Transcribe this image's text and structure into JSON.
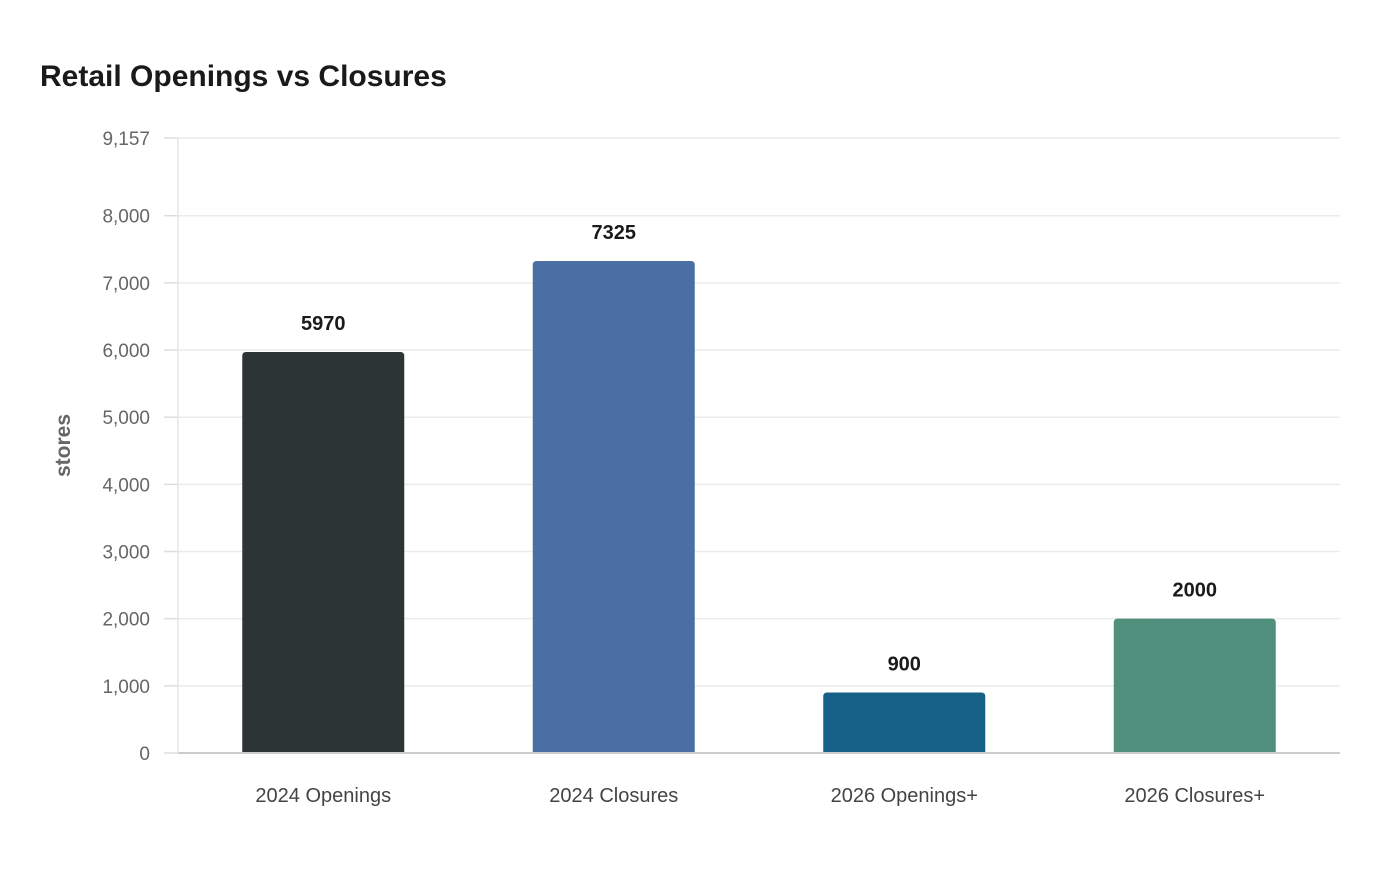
{
  "chart_data": {
    "type": "bar",
    "title": "Retail Openings vs Closures",
    "xlabel": "",
    "ylabel": "stores",
    "ylim": [
      0,
      9157
    ],
    "yticks": [
      0,
      1000,
      2000,
      3000,
      4000,
      5000,
      6000,
      7000,
      8000,
      9157
    ],
    "ytick_labels": [
      "0",
      "1,000",
      "2,000",
      "3,000",
      "4,000",
      "5,000",
      "6,000",
      "7,000",
      "8,000",
      "9,157"
    ],
    "grid": true,
    "categories": [
      "2024 Openings",
      "2024 Closures",
      "2026 Openings+",
      "2026 Closures+"
    ],
    "values": [
      5970,
      7325,
      900,
      2000
    ],
    "data_labels": [
      "5970",
      "7325",
      "900",
      "2000"
    ],
    "colors": [
      "#2d3436",
      "#4a6fa5",
      "#166088",
      "#4f8f7b"
    ]
  }
}
